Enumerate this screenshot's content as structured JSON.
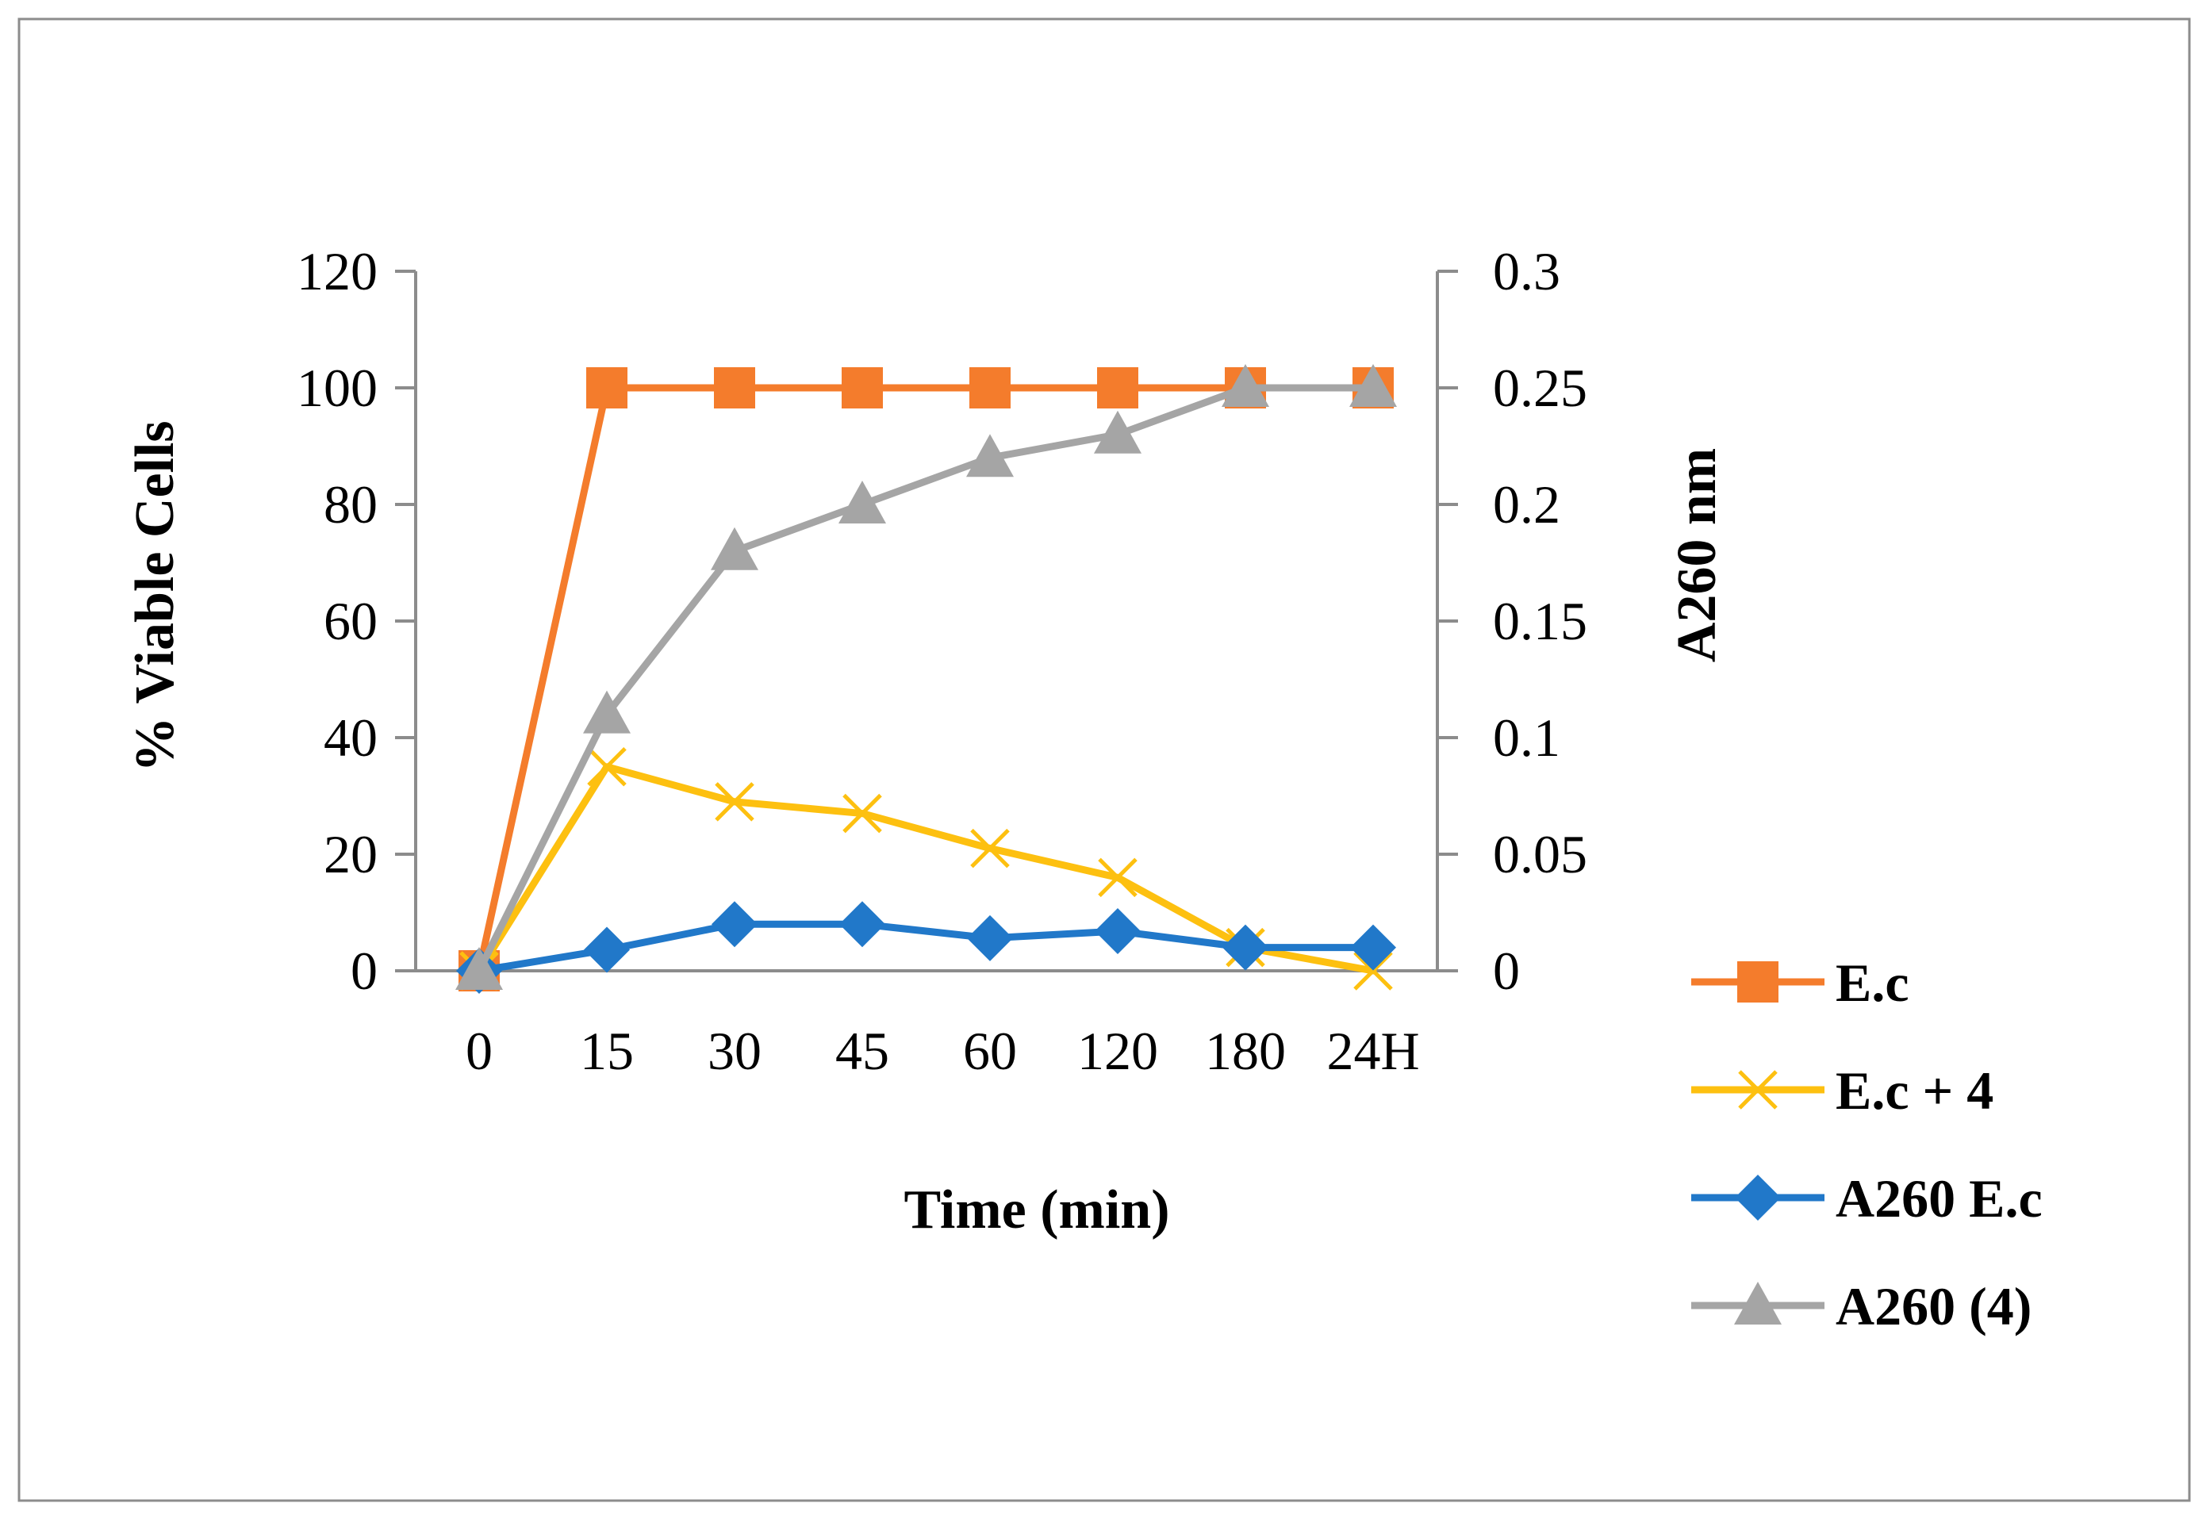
{
  "chart_data": {
    "type": "line",
    "title": "",
    "xlabel": "Time (min)",
    "ylabel": "% Viable Cells",
    "y2label": "A260 nm",
    "categories": [
      "0",
      "15",
      "30",
      "45",
      "60",
      "120",
      "180",
      "24H"
    ],
    "ylim": [
      0,
      120
    ],
    "y_ticks": [
      "0",
      "20",
      "40",
      "60",
      "80",
      "100",
      "120"
    ],
    "y2lim": [
      0,
      0.3
    ],
    "y2_ticks": [
      "0",
      "0.05",
      "0.1",
      "0.15",
      "0.2",
      "0.25",
      "0.3"
    ],
    "grid": false,
    "legend_position": "right",
    "series": [
      {
        "name": "E.c",
        "axis": "left",
        "color": "#F47C2C",
        "marker": "square",
        "values": [
          0,
          100,
          100,
          100,
          100,
          100,
          100,
          100
        ]
      },
      {
        "name": "E.c + 4",
        "axis": "left",
        "color": "#FDC010",
        "marker": "x",
        "values": [
          0,
          35,
          29,
          27,
          21,
          16,
          4,
          0
        ]
      },
      {
        "name": "A260 E.c",
        "axis": "right",
        "color": "#2178C9",
        "marker": "diamond",
        "values": [
          0,
          0.009,
          0.02,
          0.02,
          0.014,
          0.017,
          0.01,
          0.01
        ]
      },
      {
        "name": "A260 (4)",
        "axis": "right",
        "color": "#A5A5A5",
        "marker": "triangle",
        "values": [
          0,
          0.11,
          0.18,
          0.2,
          0.22,
          0.23,
          0.25,
          0.25
        ]
      }
    ]
  }
}
